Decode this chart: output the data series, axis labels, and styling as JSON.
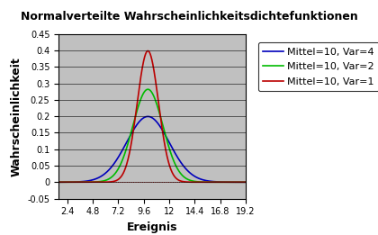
{
  "title": "Normalverteilte Wahrscheinlichkeitsdichtefunktionen",
  "xlabel": "Ereignis",
  "ylabel": "Wahrscheinlichkeit",
  "mean": 10,
  "curves": [
    {
      "variance": 4,
      "std": 2.0,
      "color": "#0000bb",
      "label": "Mittel=10, Var=4"
    },
    {
      "variance": 2,
      "std": 1.4142135623730951,
      "color": "#00bb00",
      "label": "Mittel=10, Var=2"
    },
    {
      "variance": 1,
      "std": 1.0,
      "color": "#bb0000",
      "label": "Mittel=10, Var=1"
    }
  ],
  "xmin": 1.6,
  "xmax": 19.2,
  "xticks": [
    2.4,
    4.8,
    7.2,
    9.6,
    12.0,
    14.4,
    16.8,
    19.2
  ],
  "xtick_labels": [
    "2.4",
    "4.8",
    "7.2",
    "9.6",
    "12",
    "14.4",
    "16.8",
    "19.2"
  ],
  "ymin": -0.05,
  "ymax": 0.45,
  "yticks": [
    -0.05,
    0,
    0.05,
    0.1,
    0.15,
    0.2,
    0.25,
    0.3,
    0.35,
    0.4,
    0.45
  ],
  "ytick_labels": [
    "-0.05",
    "0",
    "0.05",
    "0.1",
    "0.15",
    "0.2",
    "0.25",
    "0.3",
    "0.35",
    "0.4",
    "0.45"
  ],
  "plot_bg_color": "#c0c0c0",
  "outer_bg_color": "#ffffff",
  "title_fontsize": 9,
  "axis_label_fontsize": 9,
  "tick_fontsize": 7,
  "legend_fontsize": 8,
  "zero_line_color": "#cc0000",
  "linewidth": 1.2
}
